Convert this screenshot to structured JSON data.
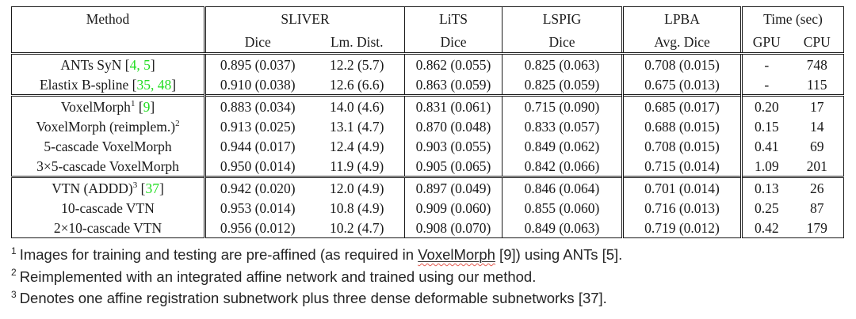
{
  "colors": {
    "citation_green": "#21dd21",
    "squiggle_red": "#e2574c"
  },
  "table": {
    "header": {
      "method": "Method",
      "sliver": "SLIVER",
      "lits": "LiTS",
      "lspig": "LSPIG",
      "lpba": "LPBA",
      "time": "Time (sec)",
      "sub": [
        "Dice",
        "Lm. Dist.",
        "Dice",
        "Dice",
        "Avg. Dice",
        "GPU",
        "CPU"
      ]
    },
    "groups": [
      {
        "rows": [
          {
            "method": [
              [
                "ANTs SyN [",
                "p"
              ],
              [
                "4, 5",
                "c"
              ],
              [
                "]",
                "p"
              ]
            ],
            "values": [
              "0.895 (0.037)",
              "12.2 (5.7)",
              "0.862 (0.055)",
              "0.825 (0.063)",
              "0.708 (0.015)",
              "-",
              "748"
            ],
            "bold": [
              0,
              0,
              0,
              0,
              0,
              0,
              0
            ]
          },
          {
            "method": [
              [
                "Elastix B-spline [",
                "p"
              ],
              [
                "35, 48",
                "c"
              ],
              [
                "]",
                "p"
              ]
            ],
            "values": [
              "0.910 (0.038)",
              "12.6 (6.6)",
              "0.863 (0.059)",
              "0.825 (0.059)",
              "0.675 (0.013)",
              "-",
              "115"
            ],
            "bold": [
              0,
              0,
              0,
              0,
              0,
              0,
              0
            ]
          }
        ]
      },
      {
        "rows": [
          {
            "method": [
              [
                "VoxelMorph",
                "p"
              ],
              [
                "1",
                "s"
              ],
              [
                " [",
                "p"
              ],
              [
                "9",
                "c"
              ],
              [
                "]",
                "p"
              ]
            ],
            "values": [
              "0.883 (0.034)",
              "14.0 (4.6)",
              "0.831 (0.061)",
              "0.715 (0.090)",
              "0.685 (0.017)",
              "0.20",
              "17"
            ],
            "bold": [
              0,
              0,
              0,
              0,
              0,
              0,
              0
            ]
          },
          {
            "method": [
              [
                "VoxelMorph (reimplem.)",
                "p"
              ],
              [
                "2",
                "s"
              ]
            ],
            "values": [
              "0.913 (0.025)",
              "13.1 (4.7)",
              "0.870 (0.048)",
              "0.833 (0.057)",
              "0.688 (0.015)",
              "0.15",
              "14"
            ],
            "bold": [
              0,
              0,
              0,
              0,
              0,
              0,
              0
            ]
          },
          {
            "method": [
              [
                "5-cascade VoxelMorph",
                "p"
              ]
            ],
            "values": [
              "0.944 (0.017)",
              "12.4 (4.9)",
              "0.903 (0.055)",
              "0.849 (0.062)",
              "0.708 (0.015)",
              "0.41",
              "69"
            ],
            "bold": [
              0,
              0,
              0,
              0,
              0,
              0,
              0
            ]
          },
          {
            "method": [
              [
                "3×5-cascade VoxelMorph",
                "p"
              ]
            ],
            "values": [
              "0.950 (0.014)",
              "11.9 (4.9)",
              "0.905 (0.065)",
              "0.842 (0.066)",
              "0.715 (0.014)",
              "1.09",
              "201"
            ],
            "bold": [
              0,
              0,
              0,
              0,
              0,
              0,
              0
            ]
          }
        ]
      },
      {
        "rows": [
          {
            "method": [
              [
                "VTN (ADDD)",
                "p"
              ],
              [
                "3",
                "s"
              ],
              [
                " [",
                "p"
              ],
              [
                "37",
                "c"
              ],
              [
                "]",
                "p"
              ]
            ],
            "values": [
              "0.942 (0.020)",
              "12.0 (4.9)",
              "0.897 (0.049)",
              "0.846 (0.064)",
              "0.701 (0.014)",
              "0.13",
              "26"
            ],
            "bold": [
              0,
              0,
              0,
              0,
              0,
              0,
              0
            ]
          },
          {
            "method": [
              [
                "10-cascade VTN",
                "p"
              ]
            ],
            "values": [
              "0.953 (0.014)",
              "10.8 (4.9)",
              "0.909 (0.060)",
              "0.855 (0.060)",
              "0.716 (0.013)",
              "0.25",
              "87"
            ],
            "bold": [
              0,
              0,
              1,
              1,
              0,
              0,
              0
            ]
          },
          {
            "method": [
              [
                "2×10-cascade VTN",
                "p"
              ]
            ],
            "values": [
              "0.956 (0.012)",
              "10.2 (4.7)",
              "0.908 (0.070)",
              "0.849 (0.063)",
              "0.719 (0.012)",
              "0.42",
              "179"
            ],
            "bold": [
              1,
              1,
              0,
              0,
              1,
              0,
              0
            ]
          }
        ]
      }
    ]
  },
  "footnotes": [
    {
      "sup": "1",
      "parts": [
        {
          "t": "Images for training and testing are pre-affined (as required in "
        },
        {
          "t": "VoxelMorph",
          "decorated": true
        },
        {
          "t": " [9]) using ANTs [5]."
        }
      ]
    },
    {
      "sup": "2",
      "parts": [
        {
          "t": "Reimplemented with an integrated affine network and trained using our method."
        }
      ]
    },
    {
      "sup": "3",
      "parts": [
        {
          "t": "Denotes one affine registration subnetwork plus three dense deformable subnetworks [37]."
        }
      ]
    }
  ]
}
